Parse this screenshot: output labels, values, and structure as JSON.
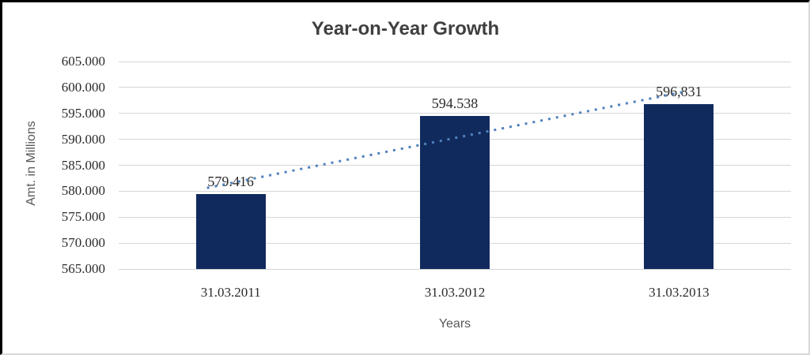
{
  "chart_data": {
    "type": "bar",
    "title": "Year-on-Year Growth",
    "xlabel": "Years",
    "ylabel": "Amt. in Millions",
    "categories": [
      "31.03.2011",
      "31.03.2012",
      "31.03.2013"
    ],
    "values": [
      579.416,
      594.538,
      596.831
    ],
    "value_labels": [
      "579.416",
      "594.538",
      "596,831"
    ],
    "ylim": [
      565,
      605
    ],
    "ytick_step": 5,
    "yticks": [
      {
        "value": 605,
        "label": "605.000"
      },
      {
        "value": 600,
        "label": "600.000"
      },
      {
        "value": 595,
        "label": "595.000"
      },
      {
        "value": 590,
        "label": "590.000"
      },
      {
        "value": 585,
        "label": "585.000"
      },
      {
        "value": 580,
        "label": "580.000"
      },
      {
        "value": 575,
        "label": "575.000"
      },
      {
        "value": 570,
        "label": "570.000"
      },
      {
        "value": 565,
        "label": "565.000"
      }
    ],
    "grid": true,
    "legend": false,
    "trendline": {
      "type": "linear",
      "style": "dotted"
    }
  },
  "colors": {
    "bar": "#112A5E",
    "trendline": "#4F81BD",
    "gridline": "#D6D6D6",
    "title_text": "#3F3F3F",
    "axis_title_text": "#595959",
    "tick_text": "#2B2B2B",
    "frame_dark": "#000000",
    "frame_light": "#D9D9D9"
  }
}
